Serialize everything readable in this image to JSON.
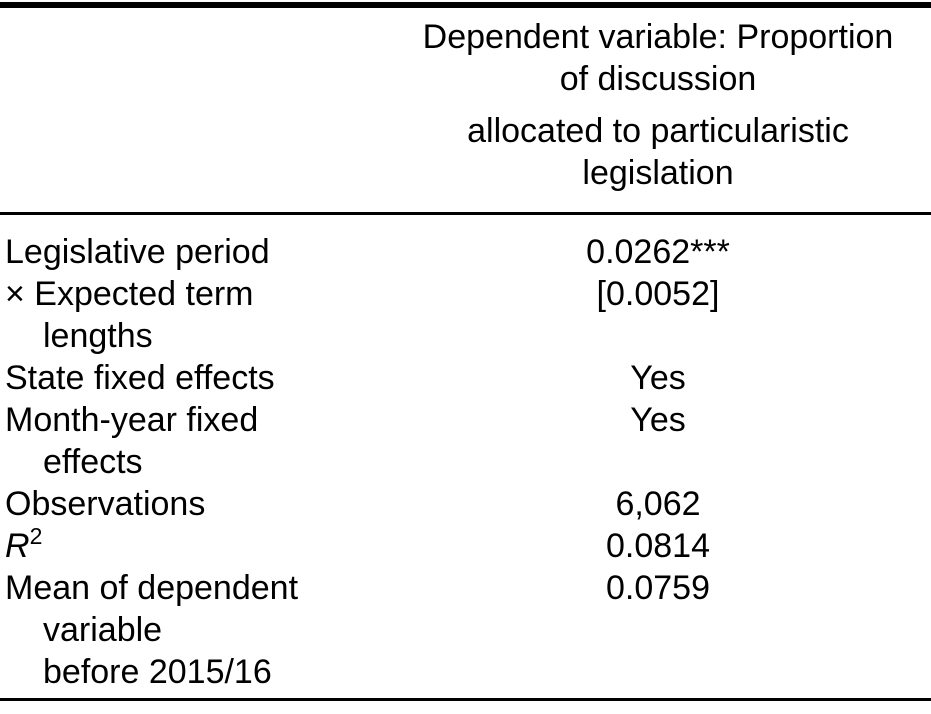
{
  "colors": {
    "text": "#000000",
    "rule": "#000000",
    "background": "#ffffff"
  },
  "header": {
    "dependent_variable_line1": "Dependent variable: Proportion",
    "dependent_variable_line2": "of discussion",
    "dependent_variable_line3": "allocated to particularistic",
    "dependent_variable_line4": "legislation"
  },
  "rows": {
    "legislative_period_interaction": {
      "label_line1": "Legislative period",
      "label_line2": "× Expected term",
      "label_line3": "lengths",
      "coefficient": "0.0262***",
      "standard_error": "[0.0052]"
    },
    "state_fixed_effects": {
      "label": "State fixed effects",
      "value": "Yes"
    },
    "month_year_fixed_effects": {
      "label_line1": "Month-year fixed",
      "label_line2": "effects",
      "value": "Yes"
    },
    "observations": {
      "label": "Observations",
      "value": "6,062"
    },
    "r_squared": {
      "label_base": "R",
      "label_superscript": "2",
      "value": "0.0814"
    },
    "mean_dependent_variable": {
      "label_line1": "Mean of dependent",
      "label_line2": "variable",
      "label_line3": "before 2015/16",
      "value": "0.0759"
    }
  }
}
